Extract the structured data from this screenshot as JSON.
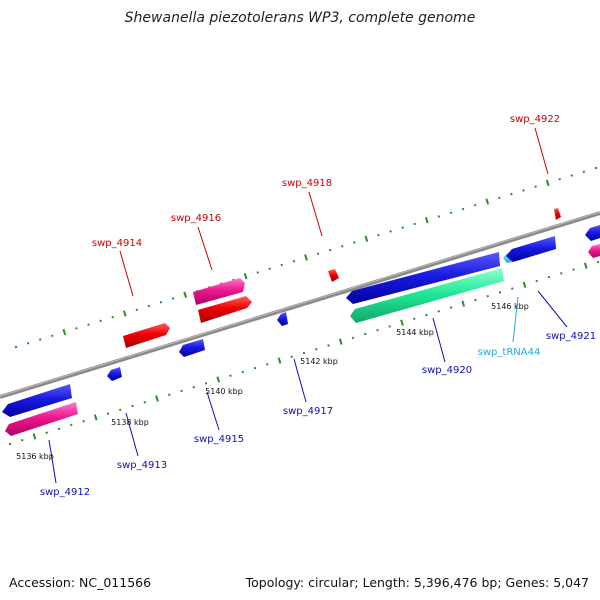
{
  "title": "Shewanella piezotolerans WP3, complete genome",
  "footer": {
    "accession": "Accession: NC_011566",
    "summary": "Topology: circular; Length: 5,396,476 bp; Genes: 5,047"
  },
  "colors": {
    "backbone": "#7f7f7f",
    "tick": "#2e8b2e",
    "cds": "#1010d0",
    "cds_alt": "#e8108a",
    "red_gene": "#e80000",
    "rrna": "#20e090",
    "trna": "#33bbee",
    "label_blue": "#1010b0",
    "label_red": "#cc0000",
    "label_trna": "#22aadd"
  },
  "axis_labels": [
    "5136 kbp",
    "5138 kbp",
    "5140 kbp",
    "5142 kbp",
    "5144 kbp",
    "5146 kbp"
  ],
  "genes": [
    {
      "label": "swp_4912",
      "strand": "-"
    },
    {
      "label": "swp_4913",
      "strand": "-"
    },
    {
      "label": "swp_4914",
      "strand": "+"
    },
    {
      "label": "swp_4915",
      "strand": "-"
    },
    {
      "label": "swp_4916",
      "strand": "+"
    },
    {
      "label": "swp_4917",
      "strand": "-"
    },
    {
      "label": "swp_4918",
      "strand": "+"
    },
    {
      "label": "swp_4920",
      "strand": "-"
    },
    {
      "label": "swp_tRNA44",
      "strand": "-"
    },
    {
      "label": "swp_4921",
      "strand": "-"
    },
    {
      "label": "swp_4922",
      "strand": "+"
    }
  ]
}
